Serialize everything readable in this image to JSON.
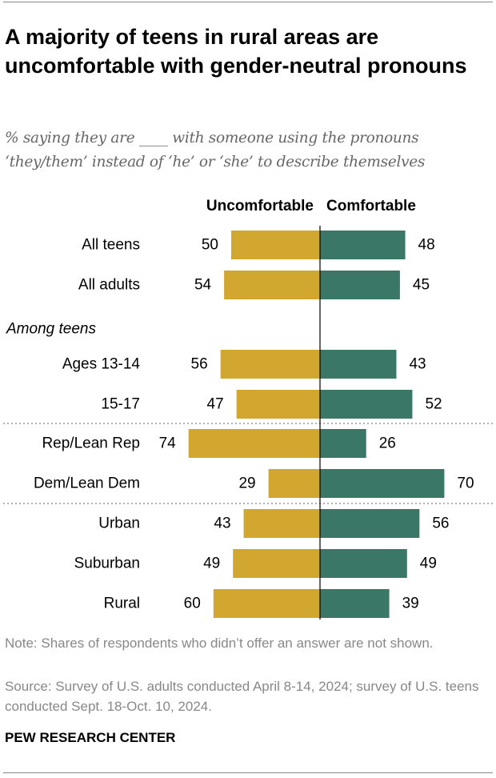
{
  "title": "A majority of teens in rural areas are uncomfortable with gender-neutral pronouns",
  "subtitle": "% saying they are ____ with someone using the pronouns ‘they/them’ instead of ‘he’ or ‘she’ to describe themselves",
  "colors": {
    "uncomfortable": "#D2A730",
    "comfortable": "#3B7767"
  },
  "chart_data": {
    "type": "bar",
    "orientation": "diverging-horizontal",
    "column_headers": [
      "Uncomfortable",
      "Comfortable"
    ],
    "group_label": "Among teens",
    "categories": [
      "All teens",
      "All adults",
      "Ages 13-14",
      "15-17",
      "Rep/Lean Rep",
      "Dem/Lean Dem",
      "Urban",
      "Suburban",
      "Rural"
    ],
    "series": [
      {
        "name": "Uncomfortable",
        "values": [
          50,
          54,
          56,
          47,
          74,
          29,
          43,
          49,
          60
        ]
      },
      {
        "name": "Comfortable",
        "values": [
          48,
          45,
          43,
          52,
          26,
          70,
          56,
          49,
          39
        ]
      }
    ]
  },
  "note": "Note: Shares of respondents who didn’t offer an answer are not shown.",
  "source": "Source: Survey of U.S. adults conducted April 8-14, 2024; survey of U.S. teens conducted Sept. 18-Oct. 10, 2024.",
  "brand": "PEW RESEARCH CENTER"
}
